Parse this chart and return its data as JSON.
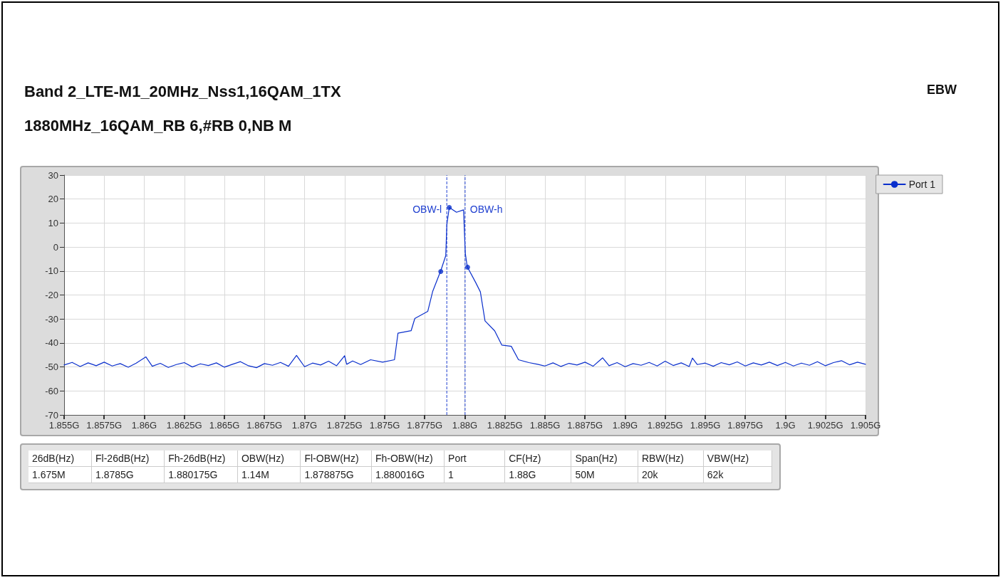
{
  "chart_data": {
    "type": "line",
    "title": "Band 2_LTE-M1_20MHz_Nss1,16QAM_1TX",
    "subtitle": "1880MHz_16QAM_RB 6,#RB 0,NB M",
    "annotations": [
      "EBW",
      "26dB(Hz)",
      "Fl-26dB(Hz)",
      "Fh-26dB(Hz)",
      "OBW(Hz)",
      "Fl-OBW(Hz)",
      "Fh-OBW(Hz)",
      "Port",
      "CF(Hz)",
      "Span(Hz)",
      "RBW(Hz)",
      "VBW(Hz)",
      "1.675M",
      "1.8785G",
      "1.880175G",
      "1.14M",
      "1.878875G",
      "1.880016G",
      "1",
      "1.88G",
      "50M",
      "20k",
      "62k"
    ],
    "xlim": [
      1.855,
      1.905
    ],
    "xticks": [
      {
        "value": 1.855,
        "label": "1.855G"
      },
      {
        "value": 1.8575,
        "label": "1.8575G"
      },
      {
        "value": 1.86,
        "label": "1.86G"
      },
      {
        "value": 1.8625,
        "label": "1.8625G"
      },
      {
        "value": 1.865,
        "label": "1.865G"
      },
      {
        "value": 1.8675,
        "label": "1.8675G"
      },
      {
        "value": 1.87,
        "label": "1.87G"
      },
      {
        "value": 1.8725,
        "label": "1.8725G"
      },
      {
        "value": 1.875,
        "label": "1.875G"
      },
      {
        "value": 1.8775,
        "label": "1.8775G"
      },
      {
        "value": 1.88,
        "label": "1.88G"
      },
      {
        "value": 1.8825,
        "label": "1.8825G"
      },
      {
        "value": 1.885,
        "label": "1.885G"
      },
      {
        "value": 1.8875,
        "label": "1.8875G"
      },
      {
        "value": 1.89,
        "label": "1.89G"
      },
      {
        "value": 1.8925,
        "label": "1.8925G"
      },
      {
        "value": 1.895,
        "label": "1.895G"
      },
      {
        "value": 1.8975,
        "label": "1.8975G"
      },
      {
        "value": 1.9,
        "label": "1.9G"
      },
      {
        "value": 1.9025,
        "label": "1.9025G"
      },
      {
        "value": 1.905,
        "label": "1.905G"
      }
    ],
    "ylim": [
      -70,
      30
    ],
    "yticks": [
      30,
      20,
      10,
      0,
      -10,
      -20,
      -30,
      -40,
      -50,
      -60,
      -70
    ],
    "grid": true,
    "legend": "top right",
    "ref_lines": [
      {
        "axis": "x",
        "value": 1.878875,
        "label": "OBW-l",
        "color": "#2040d0",
        "line_style": "dashed"
      },
      {
        "axis": "x",
        "value": 1.880016,
        "label": "OBW-h",
        "color": "#2040d0",
        "line_style": "dashed"
      }
    ],
    "series": [
      {
        "name": "Port 1",
        "color": "#0a2fcc",
        "marker": "none",
        "line_style": "solid",
        "x": [
          1.855,
          1.8555,
          1.856,
          1.8565,
          1.857,
          1.8575,
          1.858,
          1.8585,
          1.859,
          1.8595,
          1.8601,
          1.8605,
          1.861,
          1.8615,
          1.862,
          1.8625,
          1.863,
          1.8635,
          1.864,
          1.8645,
          1.865,
          1.8655,
          1.866,
          1.8665,
          1.867,
          1.8675,
          1.868,
          1.8685,
          1.869,
          1.8695,
          1.87,
          1.8705,
          1.871,
          1.8715,
          1.872,
          1.8725,
          1.87263,
          1.873,
          1.8735,
          1.87412,
          1.87487,
          1.87561,
          1.87583,
          1.87665,
          1.87688,
          1.87769,
          1.87799,
          1.87851,
          1.87881,
          1.87888,
          1.87903,
          1.87948,
          1.87992,
          1.88003,
          1.88015,
          1.88067,
          1.88097,
          1.88126,
          1.88186,
          1.88231,
          1.8829,
          1.88335,
          1.884,
          1.88454,
          1.885,
          1.8855,
          1.886,
          1.8865,
          1.887,
          1.8875,
          1.888,
          1.8886,
          1.889,
          1.8895,
          1.89,
          1.8905,
          1.891,
          1.8915,
          1.892,
          1.8925,
          1.893,
          1.8935,
          1.894,
          1.8942,
          1.8945,
          1.895,
          1.8955,
          1.896,
          1.8965,
          1.897,
          1.8975,
          1.898,
          1.8985,
          1.899,
          1.8995,
          1.9,
          1.9005,
          1.901,
          1.9015,
          1.902,
          1.9025,
          1.903,
          1.9035,
          1.904,
          1.9045,
          1.905
        ],
        "values": [
          -49.2,
          -48.1,
          -49.8,
          -48.3,
          -49.5,
          -48.0,
          -49.6,
          -48.6,
          -50.1,
          -48.4,
          -45.8,
          -49.7,
          -48.5,
          -50.2,
          -49.0,
          -48.2,
          -50.0,
          -48.7,
          -49.4,
          -48.3,
          -50.1,
          -48.9,
          -47.8,
          -49.5,
          -50.3,
          -48.6,
          -49.3,
          -48.1,
          -49.7,
          -45.2,
          -49.9,
          -48.4,
          -49.2,
          -47.6,
          -49.5,
          -45.3,
          -48.9,
          -47.5,
          -49.0,
          -47.0,
          -48.0,
          -47.0,
          -35.9,
          -34.9,
          -29.8,
          -26.8,
          -18.6,
          -9.7,
          -3.6,
          9.5,
          16.5,
          14.5,
          15.5,
          -2.6,
          -8.2,
          -14.7,
          -18.7,
          -30.8,
          -34.9,
          -40.9,
          -41.4,
          -47.0,
          -48.2,
          -48.9,
          -49.6,
          -48.3,
          -49.8,
          -48.5,
          -49.2,
          -48.0,
          -49.7,
          -46.2,
          -49.5,
          -48.2,
          -49.9,
          -48.6,
          -49.3,
          -48.1,
          -49.6,
          -47.6,
          -49.4,
          -48.3,
          -49.8,
          -46.3,
          -49.0,
          -48.4,
          -49.7,
          -48.2,
          -49.1,
          -47.9,
          -49.6,
          -48.3,
          -49.2,
          -48.0,
          -49.4,
          -48.1,
          -49.6,
          -48.4,
          -49.3,
          -47.8,
          -49.5,
          -48.2,
          -47.4,
          -49.1,
          -48.0,
          -48.9
        ]
      },
      {
        "type": "scatter",
        "color": "#0a2fcc",
        "marker": "circle",
        "x": [
          1.8785,
          1.87903,
          1.880175
        ],
        "values": [
          -10.2,
          16.5,
          -8.4
        ]
      }
    ]
  }
}
